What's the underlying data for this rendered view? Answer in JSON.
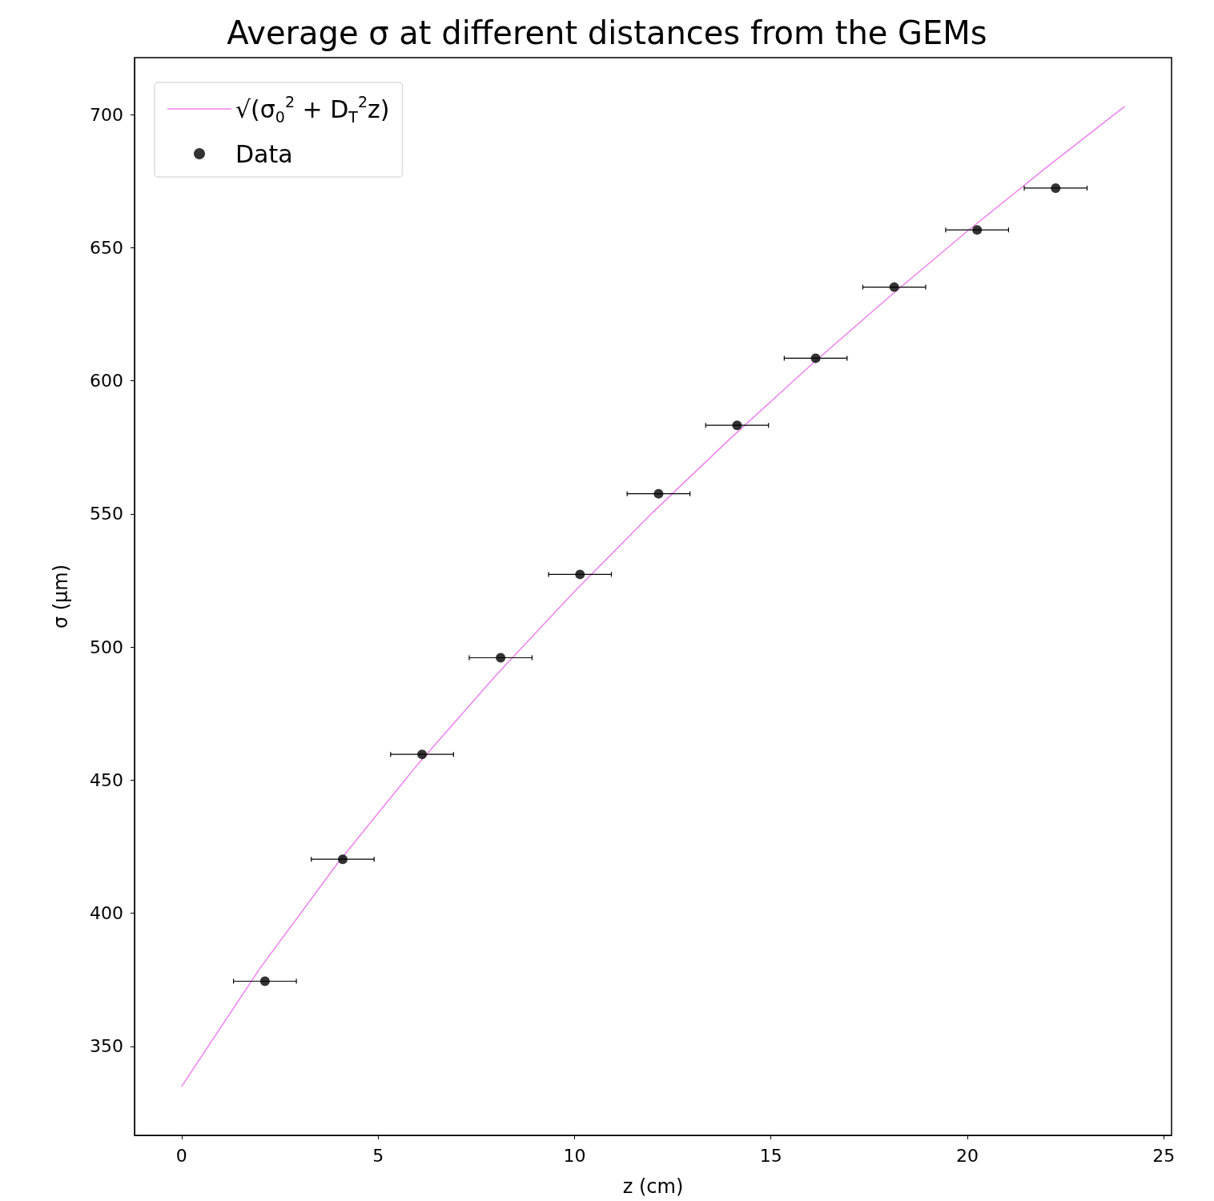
{
  "chart_data": {
    "type": "scatter",
    "title": "Average σ at different distances from the GEMs",
    "xlabel": "z (cm)",
    "ylabel": "σ (μm)",
    "xlim": [
      -1.2,
      25.2
    ],
    "ylim": [
      316.6,
      721.4
    ],
    "xticks": [
      0,
      5,
      10,
      15,
      20,
      25
    ],
    "yticks": [
      350,
      400,
      450,
      500,
      550,
      600,
      650,
      700
    ],
    "grid": false,
    "legend": "top left",
    "series": [
      {
        "name": "√(σ$_{0}$$^{2}$ + D$_{T}$$^{2}$z)",
        "type": "line",
        "color": "#ee82ee",
        "marker": "none",
        "line_style": "solid",
        "x": [
          0,
          2,
          4,
          6,
          8,
          10,
          12,
          14,
          16,
          18,
          20,
          22,
          24
        ],
        "values": [
          335,
          379.5,
          419.4,
          455.8,
          489.4,
          520.9,
          550.7,
          578.8,
          605.7,
          631.4,
          656.2,
          680.0,
          703
        ]
      },
      {
        "name": "Data",
        "color": "#000000",
        "marker": "circle",
        "x": [
          2.12,
          4.1,
          6.12,
          8.12,
          10.14,
          12.14,
          14.14,
          16.14,
          18.14,
          20.25,
          22.25
        ],
        "values": [
          374.5,
          420.3,
          459.7,
          496,
          527.3,
          557.6,
          583.3,
          608.5,
          635.2,
          656.7,
          672.4
        ],
        "xerrors": [
          0.8,
          0.8,
          0.8,
          0.8,
          0.8,
          0.8,
          0.8,
          0.8,
          0.8,
          0.8,
          0.8
        ]
      }
    ]
  }
}
